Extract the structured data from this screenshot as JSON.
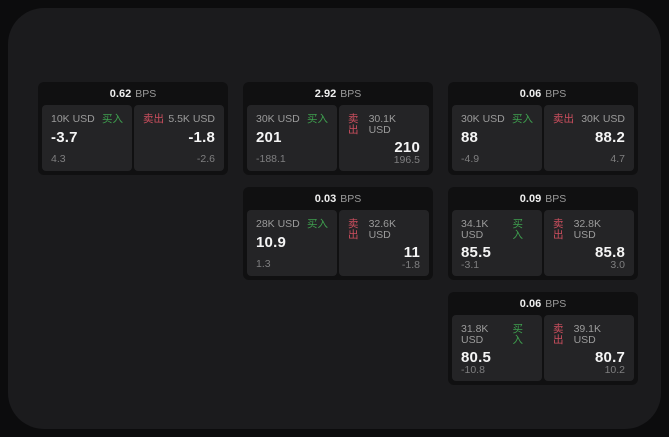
{
  "labels": {
    "bps_unit": "BPS",
    "buy": "买入",
    "sell": "卖出"
  },
  "colors": {
    "background": "#0c0c0d",
    "panel": "#1b1b1d",
    "card": "#101011",
    "tile": "#242426",
    "buy_green": "#3fa04f",
    "sell_red": "#ce4f5f",
    "text_primary": "#f5f5f5",
    "text_secondary": "#9b9b9b",
    "text_dim": "#7f7f80"
  },
  "cards": [
    {
      "bps": "0.62",
      "buy": {
        "amount": "10K USD",
        "price": "-3.7",
        "delta": "4.3"
      },
      "sell": {
        "amount": "5.5K USD",
        "price": "-1.8",
        "delta": "-2.6"
      }
    },
    {
      "bps": "2.92",
      "buy": {
        "amount": "30K USD",
        "price": "201",
        "delta": "-188.1"
      },
      "sell": {
        "amount": "30.1K USD",
        "price": "210",
        "delta": "196.5"
      }
    },
    {
      "bps": "0.06",
      "buy": {
        "amount": "30K USD",
        "price": "88",
        "delta": "-4.9"
      },
      "sell": {
        "amount": "30K USD",
        "price": "88.2",
        "delta": "4.7"
      }
    },
    {
      "bps": "0.03",
      "buy": {
        "amount": "28K USD",
        "price": "10.9",
        "delta": "1.3"
      },
      "sell": {
        "amount": "32.6K USD",
        "price": "11",
        "delta": "-1.8"
      }
    },
    {
      "bps": "0.09",
      "buy": {
        "amount": "34.1K USD",
        "price": "85.5",
        "delta": "-3.1"
      },
      "sell": {
        "amount": "32.8K USD",
        "price": "85.8",
        "delta": "3.0"
      }
    },
    {
      "bps": "0.06",
      "buy": {
        "amount": "31.8K USD",
        "price": "80.5",
        "delta": "-10.8"
      },
      "sell": {
        "amount": "39.1K USD",
        "price": "80.7",
        "delta": "10.2"
      }
    }
  ]
}
